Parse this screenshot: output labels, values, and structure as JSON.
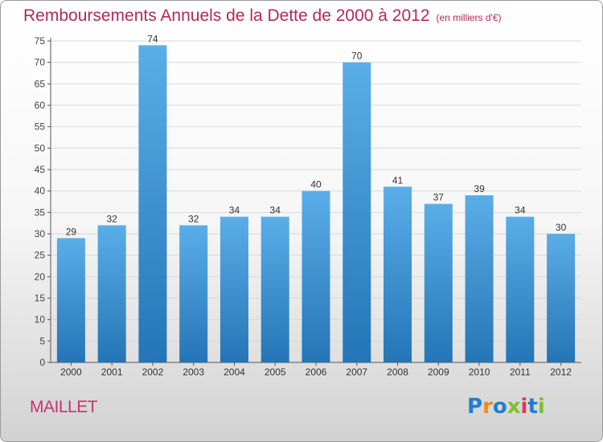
{
  "chart_data": {
    "type": "bar",
    "title": "Remboursements Annuels de la Dette de 2000 à 2012",
    "unit_label": "(en milliers d'€)",
    "categories": [
      "2000",
      "2001",
      "2002",
      "2003",
      "2004",
      "2005",
      "2006",
      "2007",
      "2008",
      "2009",
      "2010",
      "2011",
      "2012"
    ],
    "values": [
      29,
      32,
      74,
      32,
      34,
      34,
      40,
      70,
      41,
      37,
      39,
      34,
      30
    ],
    "ylim": [
      0,
      75
    ],
    "yticks": [
      0,
      5,
      10,
      15,
      20,
      25,
      30,
      35,
      40,
      45,
      50,
      55,
      60,
      65,
      70,
      75
    ],
    "grid": true,
    "xlabel": "",
    "ylabel": "",
    "colors": {
      "bar_light": "#5aaee8",
      "bar_dark": "#2475b5",
      "title": "#b5285a",
      "grid": "#d9d9d9"
    }
  },
  "commune": "MAILLET",
  "brand": {
    "text": "Proxiti",
    "letter_colors": [
      "#1f7fd1",
      "#f08a17",
      "#1f7fd1",
      "#7fbf2a",
      "#e5345a",
      "#1f7fd1",
      "#7fbf2a"
    ]
  }
}
